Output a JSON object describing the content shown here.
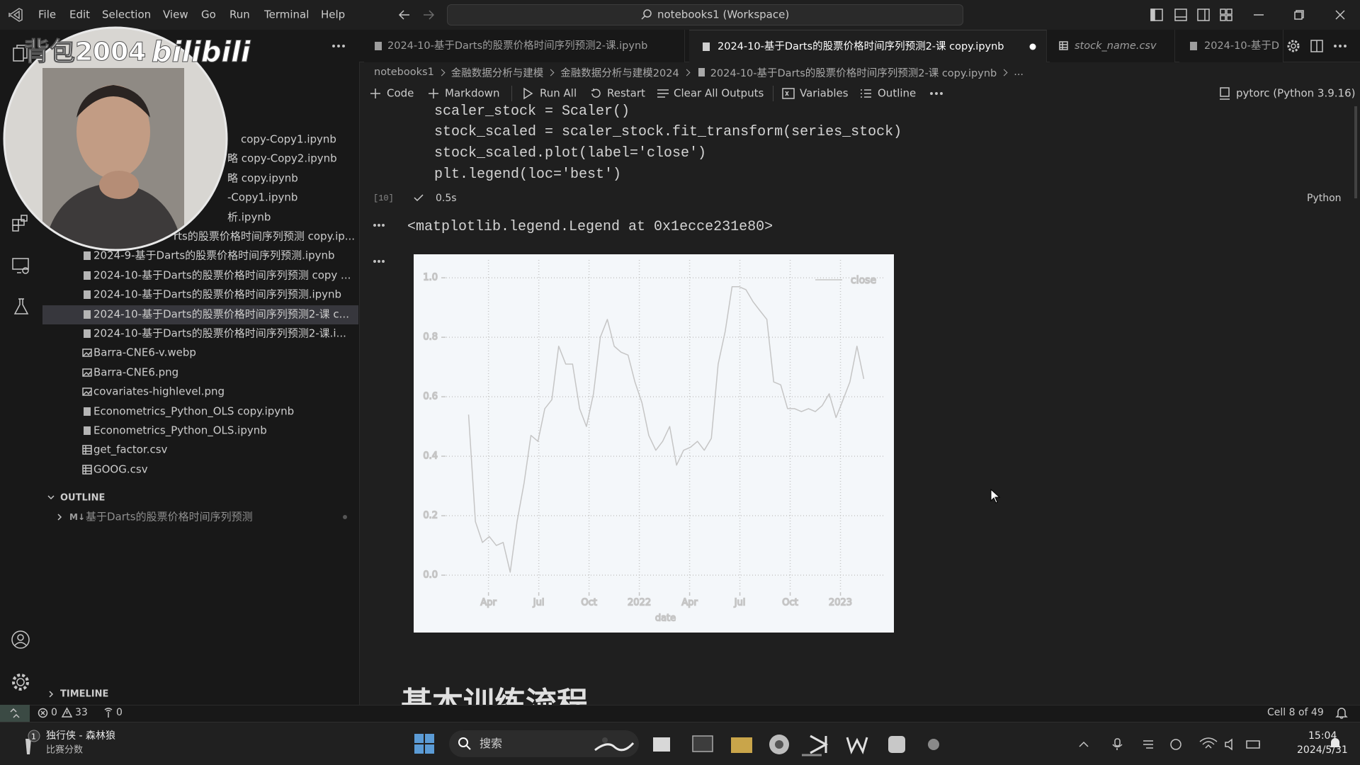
{
  "title_bar": {
    "menu": [
      "File",
      "Edit",
      "Selection",
      "View",
      "Go",
      "Run",
      "Terminal",
      "Help"
    ],
    "search": "notebooks1 (Workspace)"
  },
  "explorer": {
    "files": [
      {
        "name": "copy-Copy1.ipynb",
        "kind": "notebook"
      },
      {
        "name": "略 copy-Copy2.ipynb",
        "kind": "notebook"
      },
      {
        "name": "略 copy.ipynb",
        "kind": "notebook"
      },
      {
        "name": "-Copy1.ipynb",
        "kind": "notebook"
      },
      {
        "name": "析.ipynb",
        "kind": "notebook"
      },
      {
        "name": "rts的股票价格时间序列预测 copy.ip...",
        "kind": "notebook"
      },
      {
        "name": "2024-9-基于Darts的股票价格时间序列预测.ipynb",
        "kind": "notebook"
      },
      {
        "name": "2024-10-基于Darts的股票价格时间序列预测 copy ...",
        "kind": "notebook"
      },
      {
        "name": "2024-10-基于Darts的股票价格时间序列预测.ipynb",
        "kind": "notebook"
      },
      {
        "name": "2024-10-基于Darts的股票价格时间序列预测2-课 c...",
        "kind": "notebook"
      },
      {
        "name": "2024-10-基于Darts的股票价格时间序列预测2-课.i...",
        "kind": "notebook"
      },
      {
        "name": "Barra-CNE6-v.webp",
        "kind": "image"
      },
      {
        "name": "Barra-CNE6.png",
        "kind": "image"
      },
      {
        "name": "covariates-highlevel.png",
        "kind": "image"
      },
      {
        "name": "Econometrics_Python_OLS copy.ipynb",
        "kind": "notebook"
      },
      {
        "name": "Econometrics_Python_OLS.ipynb",
        "kind": "notebook"
      },
      {
        "name": "get_factor.csv",
        "kind": "table"
      },
      {
        "name": "GOOG.csv",
        "kind": "table"
      }
    ],
    "selected": 9,
    "outline_title": "OUTLINE",
    "outline_icon": "M↓",
    "outline_item": "基于Darts的股票价格时间序列预测",
    "timeline_title": "TIMELINE"
  },
  "tabs": {
    "items": [
      "2024-10-基于Darts的股票价格时间序列预测2-课.ipynb",
      "2024-10-基于Darts的股票价格时间序列预测2-课 copy.ipynb",
      "stock_name.csv",
      "2024-10-基于D"
    ],
    "active": 1
  },
  "breadcrumb": [
    "notebooks1",
    "金融数据分析与建模",
    "金融数据分析与建模2024",
    "2024-10-基于Darts的股票价格时间序列预测2-课 copy.ipynb",
    "..."
  ],
  "toolbar": {
    "buttons": [
      "Code",
      "Markdown",
      "Run All",
      "Restart",
      "Clear All Outputs",
      "Variables",
      "Outline"
    ],
    "kernel": "pytorc (Python 3.9.16)"
  },
  "cell": {
    "code": [
      "scaler_stock = Scaler()",
      "stock_scaled = scaler_stock.fit_transform(series_stock)",
      "stock_scaled.plot(label='close')",
      "plt.legend(loc='best')"
    ],
    "execution_count": "[10]",
    "duration": "0.5s",
    "language": "Python",
    "output": "<matplotlib.legend.Legend at 0x1ecce231e80>"
  },
  "next_heading": "基本训练流程",
  "status_bar": {
    "errors": 0,
    "warnings": 33,
    "ports": 0,
    "cell_position": "Cell 8 of 49"
  },
  "taskbar": {
    "news_badge": 1,
    "news_title": "独行侠 - 森林狼",
    "news_subtitle": "比赛分数",
    "search": "搜索",
    "time": "15:04",
    "date": "2024/5/31"
  },
  "watermark": {
    "uploader": "背包2004",
    "site": "bilibili"
  },
  "chart_data": {
    "type": "line",
    "xlabel": "date",
    "x": [
      2021.151,
      2021.185,
      2021.22,
      2021.254,
      2021.289,
      2021.323,
      2021.358,
      2021.392,
      2021.427,
      2021.461,
      2021.496,
      2021.53,
      2021.565,
      2021.599,
      2021.634,
      2021.668,
      2021.703,
      2021.737,
      2021.772,
      2021.806,
      2021.841,
      2021.875,
      2021.909,
      2021.944,
      2021.978,
      2022.013,
      2022.047,
      2022.082,
      2022.116,
      2022.151,
      2022.185,
      2022.22,
      2022.254,
      2022.289,
      2022.323,
      2022.358,
      2022.392,
      2022.427,
      2022.461,
      2022.496,
      2022.53,
      2022.565,
      2022.599,
      2022.634,
      2022.668,
      2022.703,
      2022.737,
      2022.772,
      2022.806,
      2022.841,
      2022.875,
      2022.909,
      2022.944,
      2022.978,
      2023.013,
      2023.047,
      2023.082,
      2023.116
    ],
    "series": [
      {
        "name": "close",
        "color": "#000000",
        "values": [
          0.54,
          0.18,
          0.11,
          0.13,
          0.1,
          0.11,
          0.01,
          0.18,
          0.31,
          0.47,
          0.45,
          0.56,
          0.59,
          0.77,
          0.71,
          0.71,
          0.56,
          0.5,
          0.61,
          0.8,
          0.86,
          0.77,
          0.75,
          0.74,
          0.65,
          0.58,
          0.47,
          0.42,
          0.45,
          0.5,
          0.37,
          0.42,
          0.43,
          0.45,
          0.42,
          0.46,
          0.71,
          0.82,
          0.97,
          0.97,
          0.96,
          0.92,
          0.89,
          0.86,
          0.65,
          0.64,
          0.56,
          0.56,
          0.55,
          0.56,
          0.55,
          0.57,
          0.61,
          0.53,
          0.59,
          0.65,
          0.77,
          0.66
        ]
      }
    ],
    "xlim": [
      2021.04,
      2023.22
    ],
    "ylim": [
      -0.05,
      1.06
    ],
    "xticks": [
      {
        "value": 2021.25,
        "label": "Apr"
      },
      {
        "value": 2021.5,
        "label": "Jul"
      },
      {
        "value": 2021.75,
        "label": "Oct"
      },
      2022,
      {
        "value": 2022.25,
        "label": "Apr"
      },
      {
        "value": 2022.5,
        "label": "Jul"
      },
      {
        "value": 2022.75,
        "label": "Oct"
      },
      2023
    ],
    "yticks": [
      {
        "value": 0,
        "label": "0.0"
      },
      0.2,
      0.4,
      0.6,
      0.8,
      {
        "value": 1,
        "label": "1.0"
      }
    ],
    "grid": true,
    "legend": "upper right"
  }
}
